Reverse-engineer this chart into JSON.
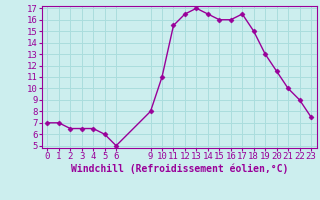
{
  "x": [
    0,
    1,
    2,
    3,
    4,
    5,
    6,
    9,
    10,
    11,
    12,
    13,
    14,
    15,
    16,
    17,
    18,
    19,
    20,
    21,
    22,
    23
  ],
  "y": [
    7.0,
    7.0,
    6.5,
    6.5,
    6.5,
    6.0,
    5.0,
    8.0,
    11.0,
    15.5,
    16.5,
    17.0,
    16.5,
    16.0,
    16.0,
    16.5,
    15.0,
    13.0,
    11.5,
    10.0,
    9.0,
    7.5
  ],
  "line_color": "#990099",
  "marker": "D",
  "marker_size": 2.5,
  "bg_color": "#cceeee",
  "grid_color": "#aadddd",
  "xlabel": "Windchill (Refroidissement éolien,°C)",
  "ylim": [
    5,
    17
  ],
  "xlim": [
    -0.5,
    23.5
  ],
  "yticks": [
    5,
    6,
    7,
    8,
    9,
    10,
    11,
    12,
    13,
    14,
    15,
    16,
    17
  ],
  "xticks": [
    0,
    1,
    2,
    3,
    4,
    5,
    6,
    9,
    10,
    11,
    12,
    13,
    14,
    15,
    16,
    17,
    18,
    19,
    20,
    21,
    22,
    23
  ],
  "tick_color": "#990099",
  "label_color": "#990099",
  "font_size": 6.5,
  "xlabel_fontsize": 7.0,
  "linewidth": 1.0
}
